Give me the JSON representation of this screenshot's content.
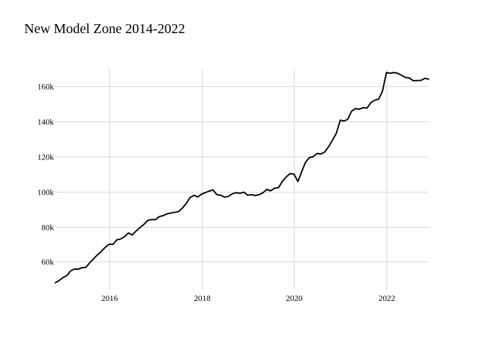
{
  "chart_data": {
    "type": "line",
    "title": "New Model Zone 2014-2022",
    "xlabel": "",
    "ylabel": "",
    "x_axis": {
      "type": "date",
      "range": [
        "2014-11-01",
        "2022-12-01"
      ],
      "ticks": [
        {
          "value": "2016-01-01",
          "label": "2016"
        },
        {
          "value": "2018-01-01",
          "label": "2018"
        },
        {
          "value": "2020-01-01",
          "label": "2020"
        },
        {
          "value": "2022-01-01",
          "label": "2022"
        }
      ]
    },
    "y_axis": {
      "range": [
        44000,
        170000
      ],
      "ticks": [
        {
          "value": 60000,
          "label": "60k"
        },
        {
          "value": 80000,
          "label": "80k"
        },
        {
          "value": 100000,
          "label": "100k"
        },
        {
          "value": 120000,
          "label": "120k"
        },
        {
          "value": 140000,
          "label": "140k"
        },
        {
          "value": 160000,
          "label": "160k"
        }
      ]
    },
    "grid": true,
    "legend": "none",
    "line_color": "#000000",
    "grid_color": "#d6d6d6",
    "x": [
      "2014-11-01",
      "2014-12-01",
      "2015-01-01",
      "2015-02-01",
      "2015-03-01",
      "2015-04-01",
      "2015-05-01",
      "2015-06-01",
      "2015-07-01",
      "2015-08-01",
      "2015-09-01",
      "2015-10-01",
      "2015-11-01",
      "2015-12-01",
      "2016-01-01",
      "2016-02-01",
      "2016-03-01",
      "2016-04-01",
      "2016-05-01",
      "2016-06-01",
      "2016-07-01",
      "2016-08-01",
      "2016-09-01",
      "2016-10-01",
      "2016-11-01",
      "2016-12-01",
      "2017-01-01",
      "2017-02-01",
      "2017-03-01",
      "2017-04-01",
      "2017-05-01",
      "2017-06-01",
      "2017-07-01",
      "2017-08-01",
      "2017-09-01",
      "2017-10-01",
      "2017-11-01",
      "2017-12-01",
      "2018-01-01",
      "2018-02-01",
      "2018-03-01",
      "2018-04-01",
      "2018-05-01",
      "2018-06-01",
      "2018-07-01",
      "2018-08-01",
      "2018-09-01",
      "2018-10-01",
      "2018-11-01",
      "2018-12-01",
      "2019-01-01",
      "2019-02-01",
      "2019-03-01",
      "2019-04-01",
      "2019-05-01",
      "2019-06-01",
      "2019-07-01",
      "2019-08-01",
      "2019-09-01",
      "2019-10-01",
      "2019-11-01",
      "2019-12-01",
      "2020-01-01",
      "2020-02-01",
      "2020-03-01",
      "2020-04-01",
      "2020-05-01",
      "2020-06-01",
      "2020-07-01",
      "2020-08-01",
      "2020-09-01",
      "2020-10-01",
      "2020-11-01",
      "2020-12-01",
      "2021-01-01",
      "2021-02-01",
      "2021-03-01",
      "2021-04-01",
      "2021-05-01",
      "2021-06-01",
      "2021-07-01",
      "2021-08-01",
      "2021-09-01",
      "2021-10-01",
      "2021-11-01",
      "2021-12-01",
      "2022-01-01",
      "2022-02-01",
      "2022-03-01",
      "2022-04-01",
      "2022-05-01",
      "2022-06-01",
      "2022-07-01",
      "2022-08-01",
      "2022-09-01",
      "2022-10-01",
      "2022-11-01",
      "2022-12-01"
    ],
    "y": [
      48000,
      49300,
      51000,
      52200,
      54800,
      55800,
      55800,
      56600,
      56800,
      59500,
      61800,
      64000,
      66000,
      68300,
      70000,
      70000,
      72500,
      73000,
      74300,
      76400,
      75300,
      77600,
      79600,
      81300,
      83600,
      84100,
      84000,
      85800,
      86300,
      87300,
      87800,
      88200,
      88600,
      90600,
      93200,
      96600,
      97900,
      97000,
      98600,
      99500,
      100300,
      101000,
      98300,
      98000,
      96900,
      97300,
      98800,
      99400,
      99100,
      99700,
      98000,
      98300,
      97800,
      98300,
      99400,
      101300,
      100500,
      102000,
      102300,
      105900,
      108400,
      110300,
      110000,
      105800,
      111300,
      116700,
      119400,
      120000,
      121800,
      121500,
      122700,
      125700,
      129500,
      133400,
      140800,
      140300,
      141300,
      146000,
      147400,
      147100,
      147900,
      147700,
      150900,
      152200,
      152800,
      157400,
      168000,
      167600,
      168000,
      167500,
      166400,
      165100,
      164900,
      163300,
      163400,
      163500,
      164700,
      164200
    ]
  }
}
